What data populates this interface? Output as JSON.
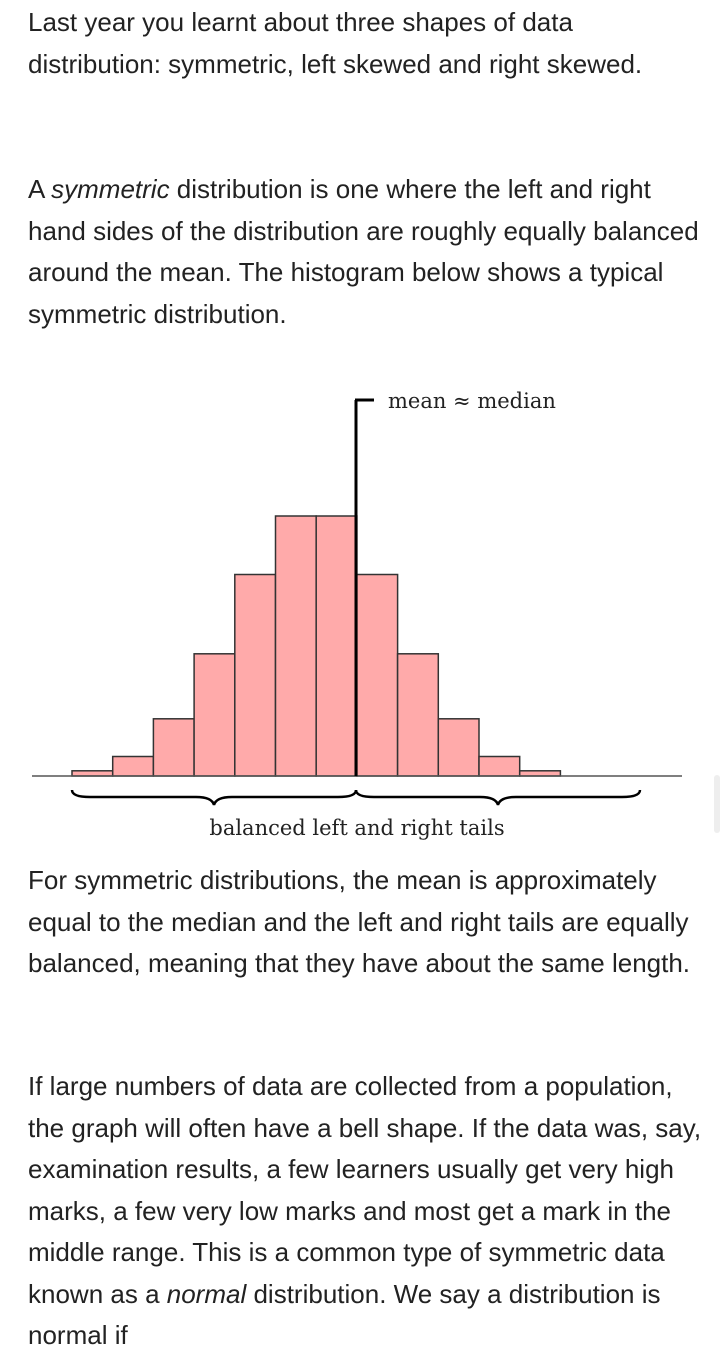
{
  "paragraphs": {
    "p1": "Last year you learnt about three shapes of data distribution: symmetric, left skewed and right skewed.",
    "p2_em": "symmetric",
    "p2_pre": "A ",
    "p2_post": " distribution is one where the left and right hand sides of the distribution are roughly equally balanced around the mean. The histogram below shows a typical symmetric distribution.",
    "p3": "For symmetric distributions, the mean is approximately equal to the median and the left and right tails are equally balanced, meaning that they have about the same length.",
    "p4_pre": "If large numbers of data are collected from a population, the graph will often have a bell shape. If the data was, say, examination results, a few learners usually get very high marks, a few very low marks and most get a mark in the middle range. This is a common type of symmetric data known as a ",
    "p4_em": "normal",
    "p4_post": " distribution. We say a distribution is normal if"
  },
  "chart_data": {
    "type": "bar",
    "title": "",
    "xlabel": "",
    "ylabel": "",
    "values": [
      0.4,
      1.5,
      4.4,
      9.4,
      15.5,
      20,
      20,
      15.5,
      9.4,
      4.4,
      1.5,
      0.4
    ],
    "ylim": [
      0,
      20
    ],
    "annotations": {
      "center_line": "mean ≈ median",
      "tails": "balanced left and right tails"
    },
    "colors": {
      "bar_fill": "#ffaaaa",
      "bar_stroke": "#333333",
      "line": "#000000"
    }
  }
}
